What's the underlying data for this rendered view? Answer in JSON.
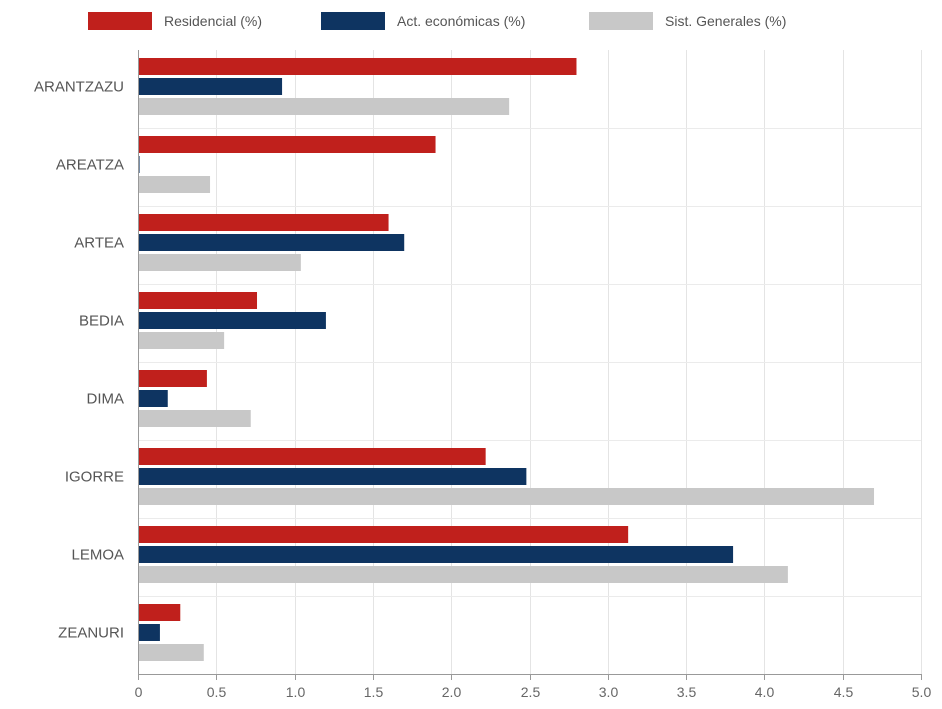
{
  "chart_data": {
    "type": "bar",
    "orientation": "horizontal",
    "categories": [
      "ARANTZAZU",
      "AREATZA",
      "ARTEA",
      "BEDIA",
      "DIMA",
      "IGORRE",
      "LEMOA",
      "ZEANURI"
    ],
    "series": [
      {
        "name": "Residencial (%)",
        "color": "#c0201c",
        "values": [
          2.8,
          1.9,
          1.6,
          0.76,
          0.44,
          2.22,
          3.13,
          0.27
        ]
      },
      {
        "name": "Act. económicas (%)",
        "color": "#0e3461",
        "values": [
          0.92,
          0.01,
          1.7,
          1.2,
          0.19,
          2.48,
          3.8,
          0.14
        ]
      },
      {
        "name": "Sist. Generales (%)",
        "color": "#c8c8c8",
        "values": [
          2.37,
          0.46,
          1.04,
          0.55,
          0.72,
          4.7,
          4.15,
          0.42
        ]
      }
    ],
    "xlim": [
      0,
      5.0
    ],
    "x_ticks": [
      "0",
      "0.5",
      "1.0",
      "1.5",
      "2.0",
      "2.5",
      "3.0",
      "3.5",
      "4.0",
      "4.5",
      "5.0"
    ],
    "x_tick_values": [
      0,
      0.5,
      1.0,
      1.5,
      2.0,
      2.5,
      3.0,
      3.5,
      4.0,
      4.5,
      5.0
    ],
    "grid": true,
    "legend_position": "top"
  }
}
